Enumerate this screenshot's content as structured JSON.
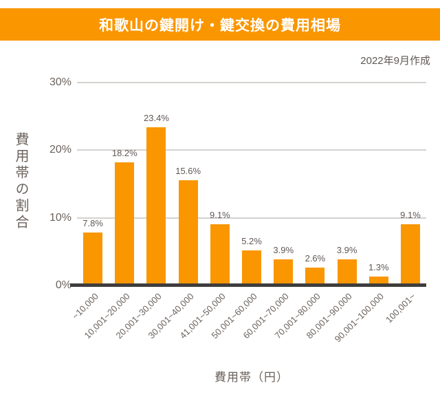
{
  "banner": {
    "title": "和歌山の鍵開け・鍵交換の費用相場"
  },
  "meta": {
    "created_label": "2022年9月作成"
  },
  "colors": {
    "accent_orange": "#FA9600",
    "axis_dark": "#3F3D3C",
    "gridline_gray": "#D4D2D0",
    "text_gray": "#6B625D"
  },
  "chart_data": {
    "type": "bar",
    "title": "和歌山の鍵開け・鍵交換の費用相場",
    "subtitle": "2022年9月作成",
    "categories": [
      "~10,000",
      "10,001~20,000",
      "20,001~30,000",
      "30,001~40,000",
      "41,001~50,000",
      "50,001~60,000",
      "60,001~70,000",
      "70,001~80,000",
      "80,001~90,000",
      "90,001~100,000",
      "100,001~"
    ],
    "values": [
      7.8,
      18.2,
      23.4,
      15.6,
      9.1,
      5.2,
      3.9,
      2.6,
      3.9,
      1.3,
      9.1
    ],
    "data_labels": [
      "7.8%",
      "18.2%",
      "23.4%",
      "15.6%",
      "9.1%",
      "5.2%",
      "3.9%",
      "2.6%",
      "3.9%",
      "1.3%",
      "9.1%"
    ],
    "xlabel": "費用帯（円）",
    "ylabel": "費用帯の割合",
    "y_ticks": [
      0,
      10,
      20,
      30
    ],
    "y_tick_labels": [
      "0%",
      "10%",
      "20%",
      "30%"
    ],
    "ylim": [
      0,
      30
    ],
    "grid": true,
    "legend_position": "none",
    "bar_color": "#FA9600"
  }
}
